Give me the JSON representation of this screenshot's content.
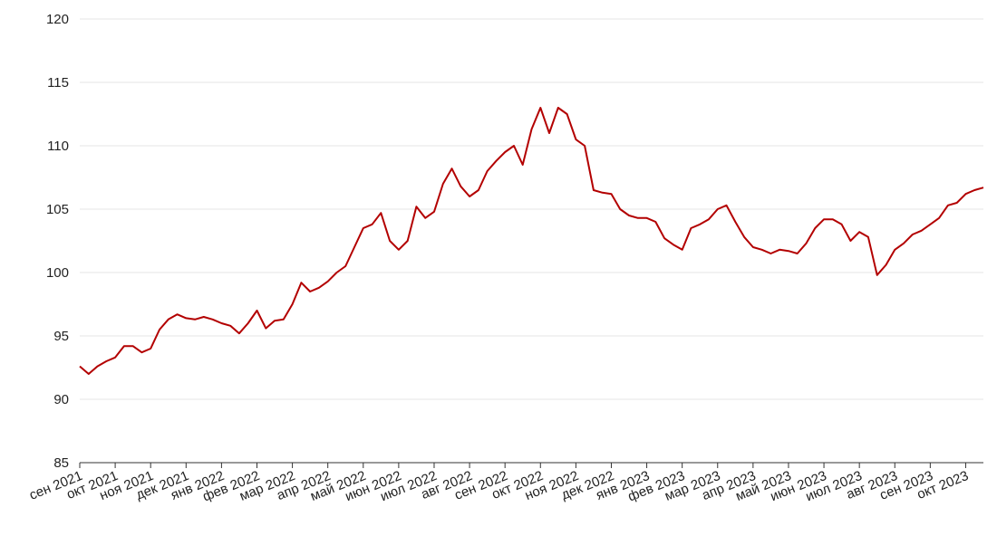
{
  "chart_data": {
    "type": "line",
    "categories": [
      "сен 2021",
      null,
      null,
      null,
      "окт 2021",
      null,
      null,
      null,
      "ноя 2021",
      null,
      null,
      null,
      "дек 2021",
      null,
      null,
      null,
      "янв 2022",
      null,
      null,
      null,
      "фев 2022",
      null,
      null,
      null,
      "мар 2022",
      null,
      null,
      null,
      "апр 2022",
      null,
      null,
      null,
      "май 2022",
      null,
      null,
      null,
      "июн 2022",
      null,
      null,
      null,
      "июл 2022",
      null,
      null,
      null,
      "авг 2022",
      null,
      null,
      null,
      "сен 2022",
      null,
      null,
      null,
      "окт 2022",
      null,
      null,
      null,
      "ноя 2022",
      null,
      null,
      null,
      "дек 2022",
      null,
      null,
      null,
      "янв 2023",
      null,
      null,
      null,
      "фев 2023",
      null,
      null,
      null,
      "мар 2023",
      null,
      null,
      null,
      "апр 2023",
      null,
      null,
      null,
      "май 2023",
      null,
      null,
      null,
      "июн 2023",
      null,
      null,
      null,
      "июл 2023",
      null,
      null,
      null,
      "авг 2023",
      null,
      null,
      null,
      "сен 2023",
      null,
      null,
      null,
      "окт 2023",
      null,
      null
    ],
    "series": [
      {
        "color": "#b30000",
        "values": [
          92.6,
          92.0,
          92.6,
          93.0,
          93.3,
          94.2,
          94.2,
          93.7,
          94.0,
          95.5,
          96.3,
          96.7,
          96.4,
          96.3,
          96.5,
          96.3,
          96.0,
          95.8,
          95.2,
          96.0,
          97.0,
          95.6,
          96.2,
          96.3,
          97.5,
          99.2,
          98.5,
          98.8,
          99.3,
          100.0,
          100.5,
          102.0,
          103.5,
          103.8,
          104.7,
          102.5,
          101.8,
          102.5,
          105.2,
          104.3,
          104.8,
          107.0,
          108.2,
          106.8,
          106.0,
          106.5,
          108.0,
          108.8,
          109.5,
          110.0,
          108.5,
          111.3,
          113.0,
          111.0,
          113.0,
          112.5,
          110.5,
          110.0,
          106.5,
          106.3,
          106.2,
          105.0,
          104.5,
          104.3,
          104.3,
          104.0,
          102.7,
          102.2,
          101.8,
          103.5,
          103.8,
          104.2,
          105.0,
          105.3,
          104.0,
          102.8,
          102.0,
          101.8,
          101.5,
          101.8,
          101.7,
          101.5,
          102.3,
          103.5,
          104.2,
          104.2,
          103.8,
          102.5,
          103.2,
          102.8,
          99.8,
          100.6,
          101.8,
          102.3,
          103.0,
          103.3,
          103.8,
          104.3,
          105.3,
          105.5,
          106.2,
          106.5,
          106.7
        ]
      }
    ],
    "ylim": [
      85,
      120
    ],
    "yticks": [
      85,
      90,
      95,
      100,
      105,
      110,
      115,
      120
    ],
    "grid": true
  }
}
